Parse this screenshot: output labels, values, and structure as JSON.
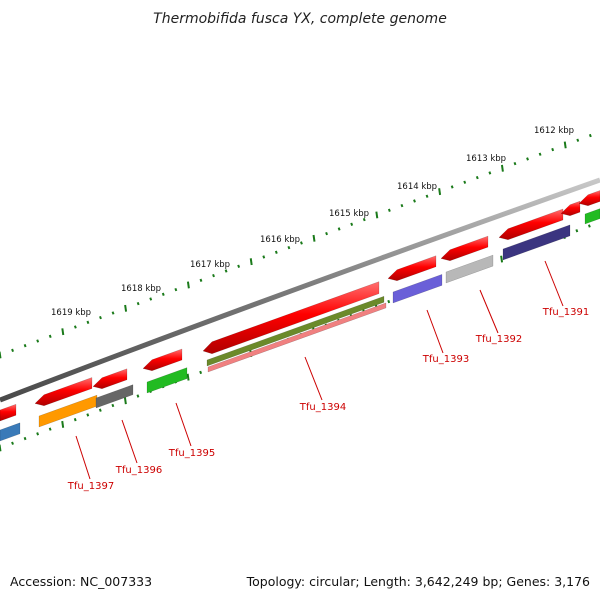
{
  "title": "Thermobifida fusca YX, complete genome",
  "footer": {
    "accession": "Accession: NC_007333",
    "summary": "Topology: circular; Length: 3,642,249 bp; Genes: 3,176"
  },
  "scale_labels": [
    "1612 kbp",
    "1613 kbp",
    "1614 kbp",
    "1615 kbp",
    "1616 kbp",
    "1617 kbp",
    "1618 kbp",
    "1619 kbp"
  ],
  "gene_labels": [
    "Tfu_1391",
    "Tfu_1392",
    "Tfu_1393",
    "Tfu_1394",
    "Tfu_1395",
    "Tfu_1396",
    "Tfu_1397"
  ],
  "colors": {
    "backbone": "#7a7a7a",
    "ticks": "#1a7a1a",
    "cds": "#ff0000",
    "label": "#cc0000",
    "Tfu_1391": "#3b3580",
    "Tfu_1392": "#b8b8b8",
    "Tfu_1393": "#6a5fd8",
    "Tfu_1394_a": "#6b8a2a",
    "Tfu_1394_b": "#f08080",
    "Tfu_1395": "#22bb22",
    "Tfu_1396": "#666666",
    "Tfu_1397": "#ff9900",
    "edge_blue": "#3a7ab8",
    "edge_green": "#22bb22"
  }
}
